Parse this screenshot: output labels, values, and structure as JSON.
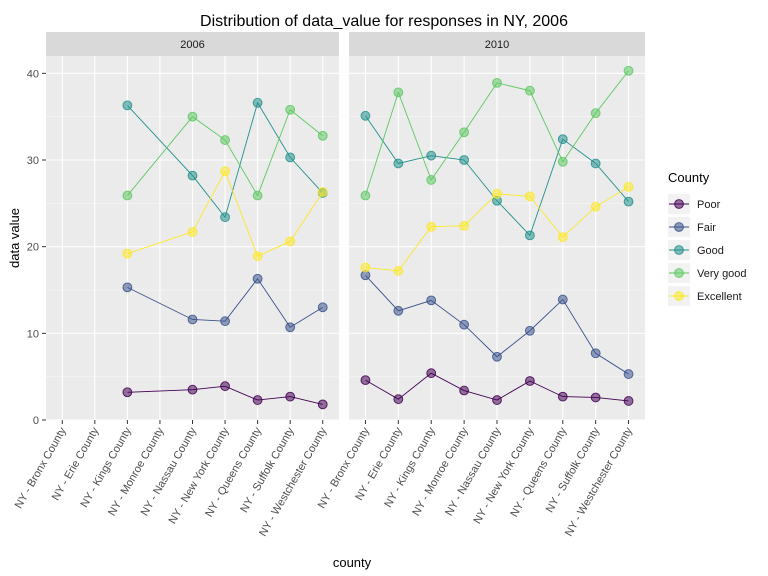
{
  "chart_data": {
    "type": "line",
    "title": "Distribution of data_value for responses in NY, 2006",
    "xlabel": "county",
    "ylabel": "data value",
    "ylim": [
      0,
      42
    ],
    "y_ticks": [
      0,
      10,
      20,
      30,
      40
    ],
    "grid": true,
    "legend": {
      "title": "County",
      "position": "right"
    },
    "categories": [
      "NY - Bronx County",
      "NY - Erie County",
      "NY - Kings County",
      "NY - Monroe County",
      "NY - Nassau County",
      "NY - New York County",
      "NY - Queens County",
      "NY - Suffolk County",
      "NY - Westchester County"
    ],
    "panels": [
      {
        "label": "2006",
        "series": [
          {
            "name": "Poor",
            "color": "#440154",
            "values": [
              null,
              null,
              3.2,
              null,
              3.5,
              3.9,
              2.3,
              2.7,
              1.8
            ]
          },
          {
            "name": "Fair",
            "color": "#3B528B",
            "values": [
              null,
              null,
              15.3,
              null,
              11.6,
              11.4,
              16.3,
              10.7,
              13.0
            ]
          },
          {
            "name": "Good",
            "color": "#21908C",
            "values": [
              null,
              null,
              36.3,
              null,
              28.2,
              23.4,
              36.6,
              30.3,
              26.2
            ]
          },
          {
            "name": "Very good",
            "color": "#5DC863",
            "values": [
              null,
              null,
              25.9,
              null,
              35.0,
              32.3,
              25.9,
              35.8,
              32.8
            ]
          },
          {
            "name": "Excellent",
            "color": "#FDE725",
            "values": [
              null,
              null,
              19.2,
              null,
              21.7,
              28.7,
              18.9,
              20.6,
              26.3
            ]
          }
        ]
      },
      {
        "label": "2010",
        "series": [
          {
            "name": "Poor",
            "color": "#440154",
            "values": [
              4.6,
              2.4,
              5.4,
              3.4,
              2.3,
              4.5,
              2.7,
              2.6,
              2.2
            ]
          },
          {
            "name": "Fair",
            "color": "#3B528B",
            "values": [
              16.7,
              12.6,
              13.8,
              11.0,
              7.3,
              10.3,
              13.9,
              7.7,
              5.3
            ]
          },
          {
            "name": "Good",
            "color": "#21908C",
            "values": [
              35.1,
              29.6,
              30.5,
              30.0,
              25.3,
              21.3,
              32.4,
              29.6,
              25.2
            ]
          },
          {
            "name": "Very good",
            "color": "#5DC863",
            "values": [
              25.9,
              37.8,
              27.7,
              33.2,
              38.9,
              38.0,
              29.8,
              35.4,
              40.3
            ]
          },
          {
            "name": "Excellent",
            "color": "#FDE725",
            "values": [
              17.6,
              17.2,
              22.3,
              22.4,
              26.1,
              25.8,
              21.1,
              24.6,
              26.9
            ]
          }
        ]
      }
    ]
  }
}
